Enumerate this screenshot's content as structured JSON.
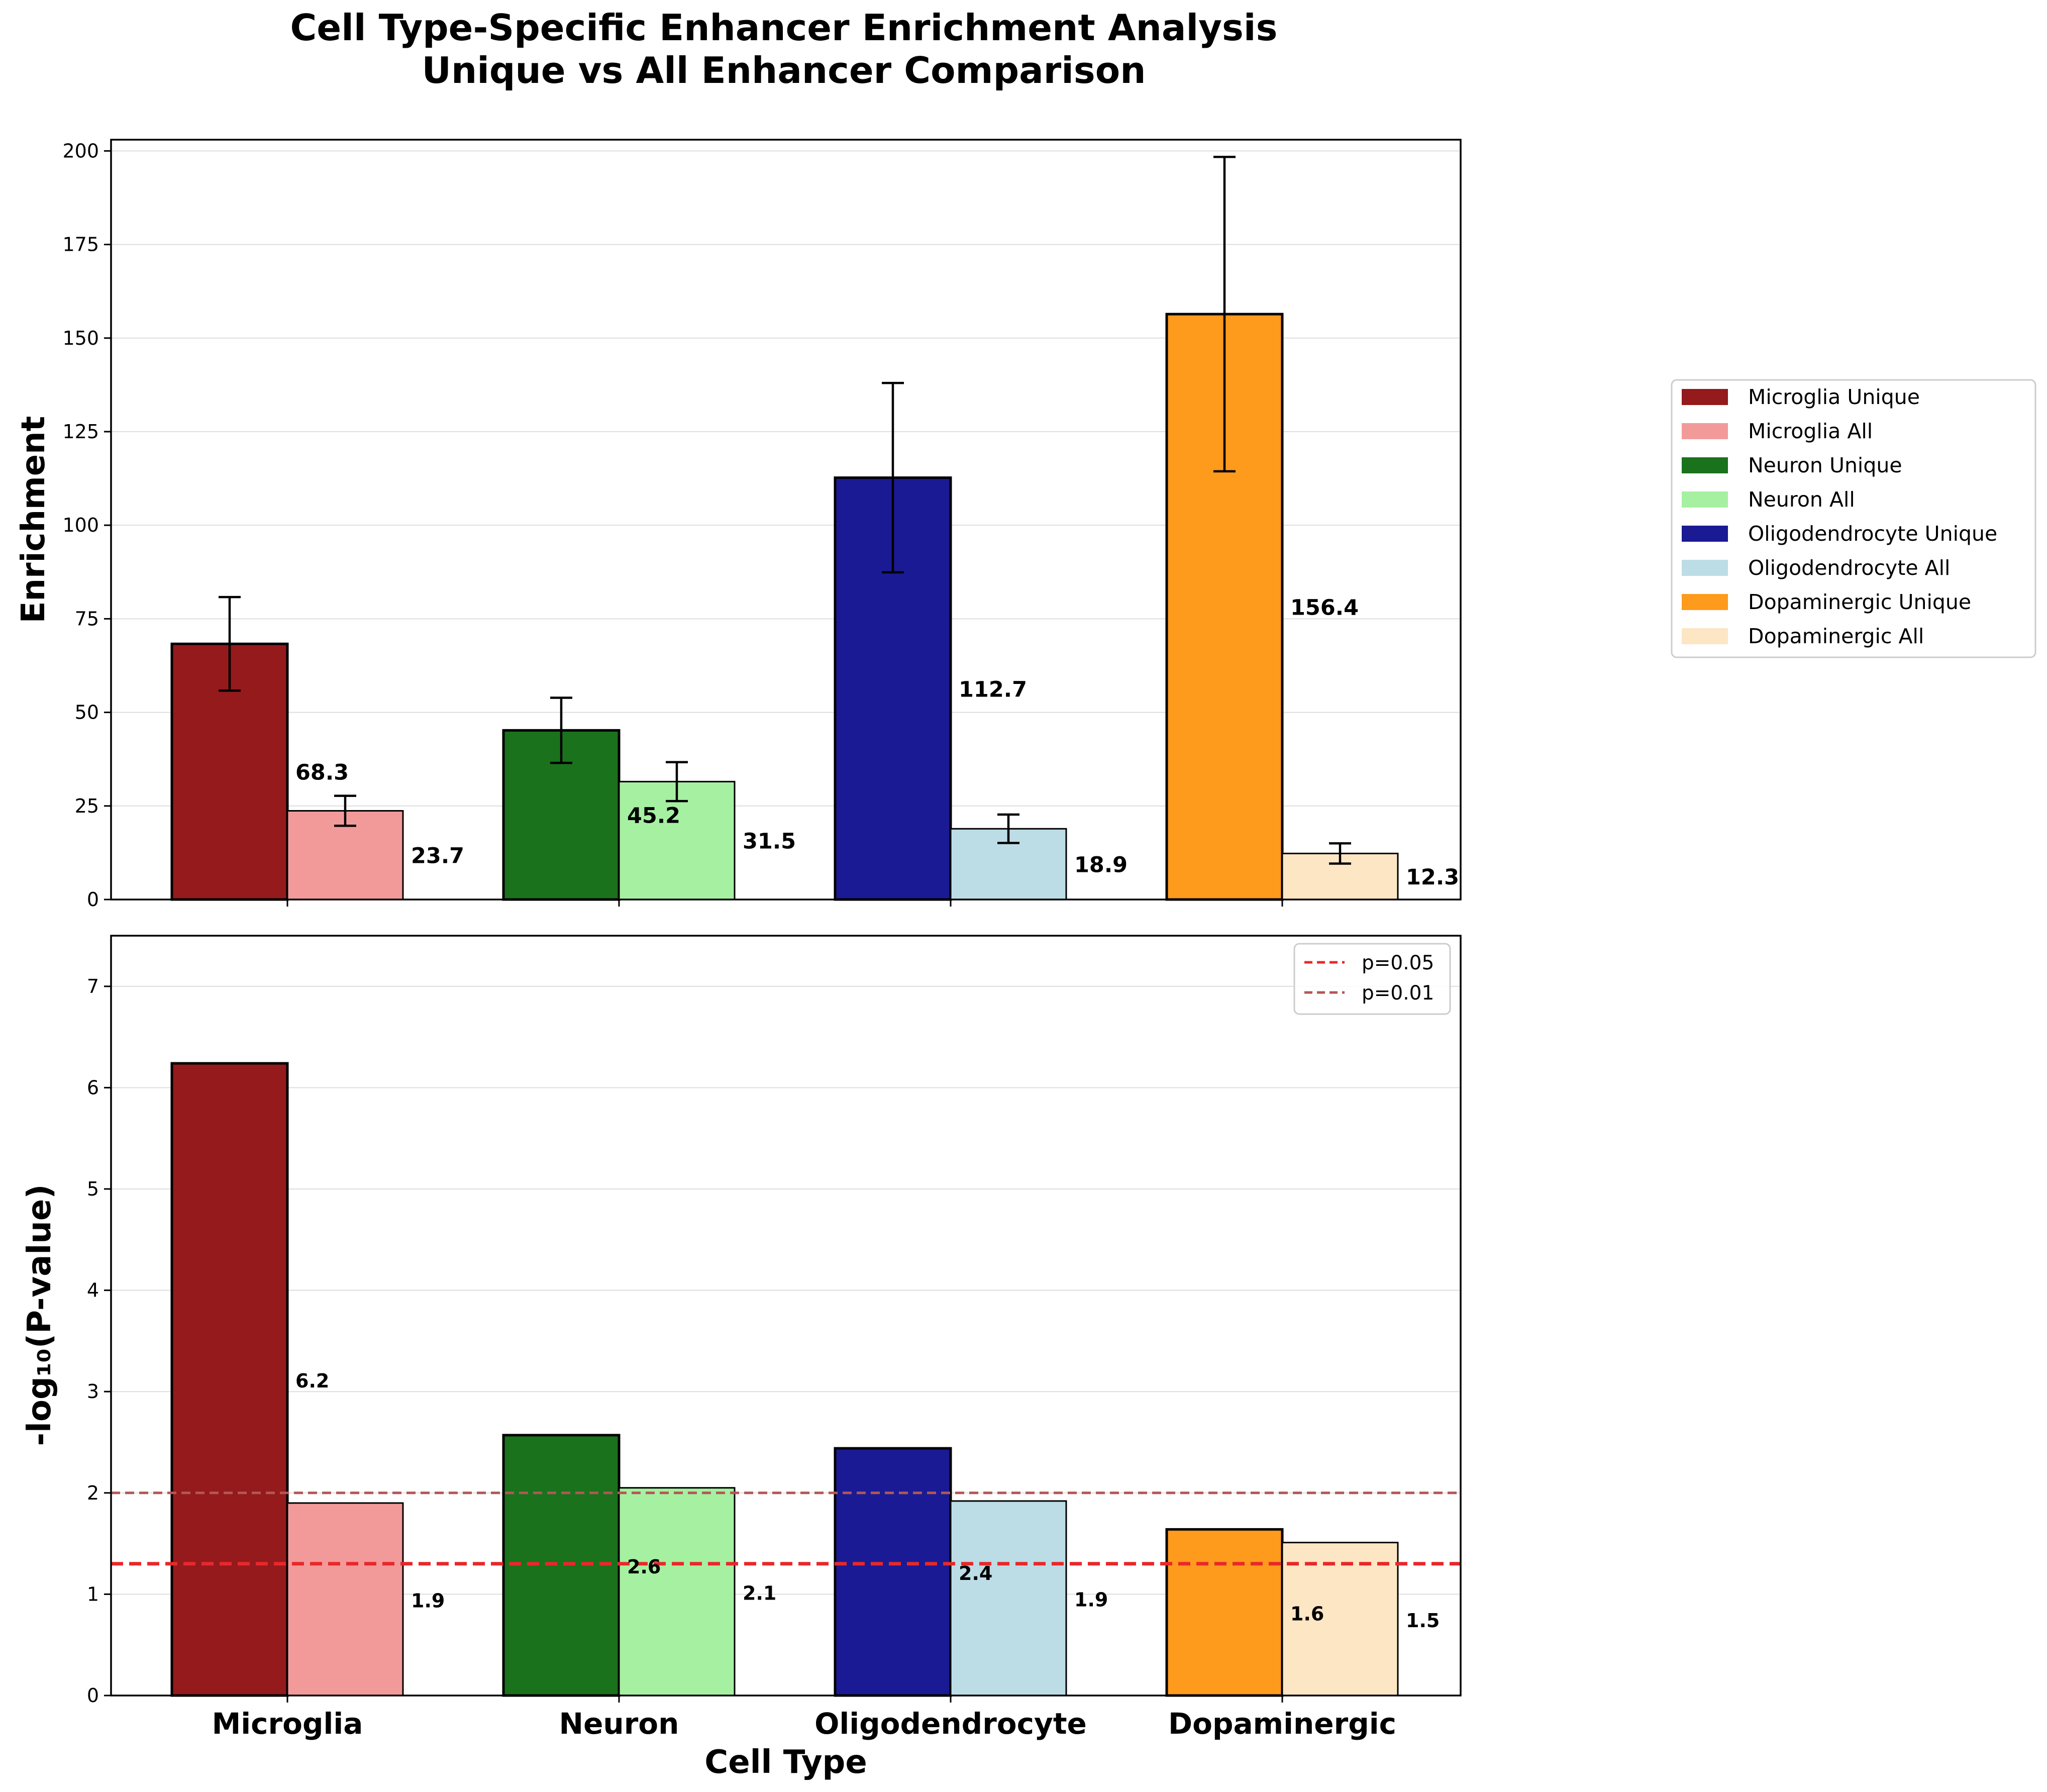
{
  "figure_title_line1": "Cell Type-Specific Enhancer Enrichment Analysis",
  "figure_title_line2": "Unique vs All Enhancer Comparison",
  "colors": {
    "Microglia": {
      "unique": "#941a1c",
      "all": "#f29a9a"
    },
    "Neuron": {
      "unique": "#1a721c",
      "all": "#a6f0a2"
    },
    "Oligodendrocyte": {
      "unique": "#1a1a94",
      "all": "#bcdde6"
    },
    "Dopaminergic": {
      "unique": "#fe9a1c",
      "all": "#fde6c4"
    },
    "p05_line": "#e8282a",
    "p01_line": "#b45656"
  },
  "chart_data": [
    {
      "type": "bar",
      "categories": [
        "Microglia",
        "Neuron",
        "Oligodendrocyte",
        "Dopaminergic"
      ],
      "ylabel": "Enrichment",
      "xlabel": "",
      "ylim": [
        0,
        203
      ],
      "yticks": [
        "0",
        "25",
        "50",
        "75",
        "100",
        "125",
        "150",
        "175",
        "200"
      ],
      "grid": true,
      "legend_position": "outside-right",
      "series": [
        {
          "name": "Unique",
          "values": [
            68.3,
            45.2,
            112.7,
            156.4
          ],
          "errors": [
            12.5,
            8.7,
            25.3,
            42.0
          ],
          "labels": [
            "68.3",
            "45.2",
            "112.7",
            "156.4"
          ]
        },
        {
          "name": "All",
          "values": [
            23.7,
            31.5,
            18.9,
            12.3
          ],
          "errors": [
            4.0,
            5.2,
            3.8,
            2.7
          ],
          "labels": [
            "23.7",
            "31.5",
            "18.9",
            "12.3"
          ]
        }
      ],
      "legend": [
        "Microglia Unique",
        "Microglia All",
        "Neuron Unique",
        "Neuron All",
        "Oligodendrocyte Unique",
        "Oligodendrocyte All",
        "Dopaminergic Unique",
        "Dopaminergic All"
      ]
    },
    {
      "type": "bar",
      "categories": [
        "Microglia",
        "Neuron",
        "Oligodendrocyte",
        "Dopaminergic"
      ],
      "ylabel": "-log₁₀(P-value)",
      "xlabel": "Cell Type",
      "ylim": [
        0,
        7.5
      ],
      "yticks": [
        "0",
        "1",
        "2",
        "3",
        "4",
        "5",
        "6",
        "7"
      ],
      "grid": true,
      "legend_position": "upper-right",
      "series": [
        {
          "name": "Unique",
          "values": [
            6.24,
            2.57,
            2.44,
            1.64
          ],
          "labels": [
            "6.2",
            "2.6",
            "2.4",
            "1.6"
          ]
        },
        {
          "name": "All",
          "values": [
            1.9,
            2.05,
            1.92,
            1.51
          ],
          "labels": [
            "1.9",
            "2.1",
            "1.9",
            "1.5"
          ]
        }
      ],
      "reference_lines": [
        {
          "label": "p=0.05",
          "value": 1.301
        },
        {
          "label": "p=0.01",
          "value": 2.0
        }
      ]
    }
  ]
}
